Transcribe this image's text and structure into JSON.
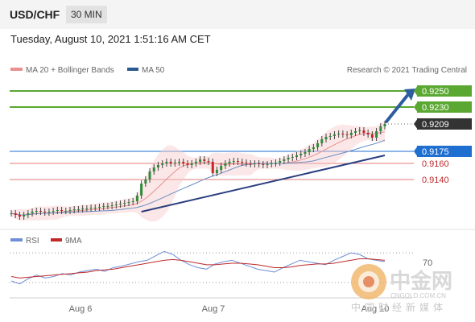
{
  "header": {
    "symbol": "USD/CHF",
    "timeframe": "30 MIN"
  },
  "datetime": "Tuesday, August 10, 2021 1:51:16 AM CET",
  "legend": {
    "ma20": "MA 20 + Bollinger Bands",
    "ma50": "MA 50",
    "credit": "Research © 2021 Trading Central"
  },
  "colors": {
    "green": "#5aa832",
    "blue_tag": "#1e6fd0",
    "red_line": "#e07878",
    "current_tag": "#333333",
    "arrow": "#2c5e9e",
    "trend": "#2a3f80"
  },
  "watermark": {
    "logo_text": "中金网",
    "url": "CNGOLD.COM.CN",
    "tagline": "中国财经新媒体"
  },
  "chart_data": {
    "type": "candlestick",
    "x_labels": [
      "Aug 6",
      "Aug 7",
      "Aug 10"
    ],
    "price_ylim": [
      0.9088,
      0.9263
    ],
    "levels": [
      {
        "value": "0.9250",
        "kind": "resistance"
      },
      {
        "value": "0.9230",
        "kind": "resistance"
      },
      {
        "value": "0.9209",
        "kind": "current"
      },
      {
        "value": "0.9175",
        "kind": "pivot"
      },
      {
        "value": "0.9160",
        "kind": "support"
      },
      {
        "value": "0.9140",
        "kind": "support"
      }
    ],
    "close_series": [
      0.9098,
      0.9096,
      0.9094,
      0.9096,
      0.9098,
      0.91,
      0.9101,
      0.91,
      0.9099,
      0.91,
      0.9101,
      0.9102,
      0.9101,
      0.9101,
      0.9102,
      0.9103,
      0.9103,
      0.9104,
      0.9104,
      0.9105,
      0.9105,
      0.9106,
      0.9107,
      0.9107,
      0.9108,
      0.9109,
      0.911,
      0.9111,
      0.9112,
      0.9113,
      0.912,
      0.9135,
      0.914,
      0.915,
      0.9155,
      0.9158,
      0.916,
      0.9162,
      0.916,
      0.9161,
      0.9162,
      0.916,
      0.9158,
      0.916,
      0.9162,
      0.9165,
      0.9163,
      0.9162,
      0.9148,
      0.9152,
      0.9157,
      0.916,
      0.9162,
      0.9163,
      0.9162,
      0.9161,
      0.916,
      0.9159,
      0.916,
      0.9159,
      0.9158,
      0.9159,
      0.916,
      0.9161,
      0.9163,
      0.9165,
      0.9167,
      0.9168,
      0.917,
      0.9172,
      0.9174,
      0.9178,
      0.918,
      0.9185,
      0.919,
      0.9193,
      0.9194,
      0.9196,
      0.9197,
      0.9196,
      0.9195,
      0.9198,
      0.92,
      0.9201,
      0.9198,
      0.9196,
      0.9192,
      0.92,
      0.9206,
      0.9209
    ],
    "trend_line": [
      [
        0.91,
        0
      ],
      [
        0.92,
        1
      ]
    ],
    "rsi": {
      "legend": [
        "RSI",
        "9MA"
      ],
      "level_label": "70",
      "rsi_series": [
        32,
        28,
        35,
        40,
        36,
        38,
        42,
        40,
        44,
        46,
        48,
        45,
        50,
        52,
        55,
        58,
        60,
        66,
        72,
        68,
        60,
        54,
        50,
        48,
        55,
        58,
        60,
        56,
        52,
        48,
        46,
        44,
        50,
        55,
        60,
        58,
        56,
        54,
        60,
        65,
        70,
        68,
        62,
        60,
        58
      ],
      "ma_series": [
        38,
        36,
        37,
        38,
        39,
        40,
        41,
        42,
        43,
        44,
        46,
        47,
        48,
        50,
        52,
        54,
        56,
        58,
        60,
        61,
        60,
        58,
        56,
        54,
        54,
        55,
        56,
        56,
        55,
        54,
        52,
        50,
        50,
        51,
        53,
        54,
        55,
        55,
        56,
        58,
        60,
        62,
        62,
        61,
        60
      ]
    }
  }
}
